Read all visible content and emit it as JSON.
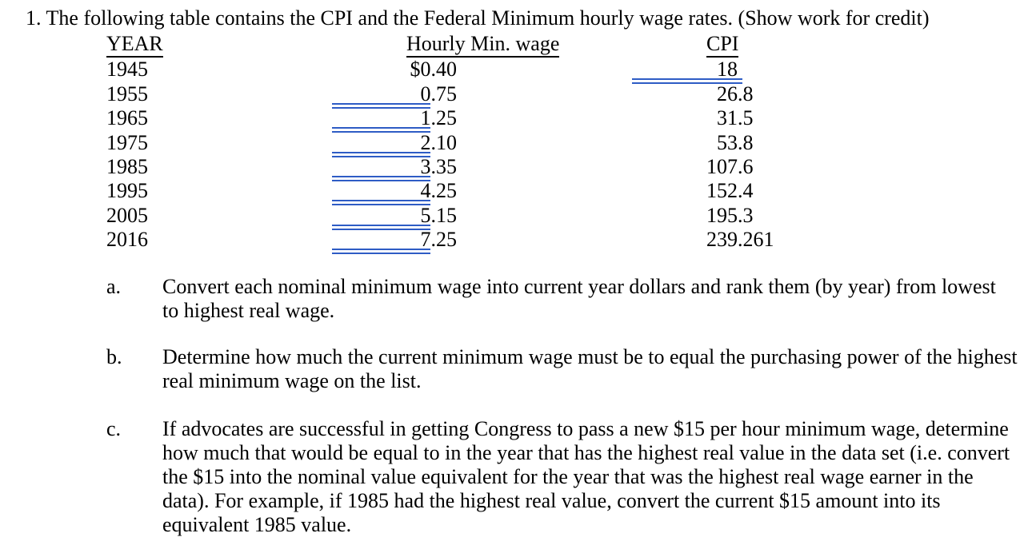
{
  "title": "1. The following table contains the CPI and the Federal Minimum hourly wage rates. (Show work for credit)",
  "table": {
    "headers": {
      "year": "YEAR",
      "wage": "Hourly Min. wage",
      "cpi": "CPI"
    },
    "rows": [
      {
        "year": "1945",
        "wage": "$0.40",
        "cpi": "18",
        "wage_blank": false,
        "cpi_blank": true
      },
      {
        "year": "1955",
        "wage": "0.75",
        "cpi": "26.8",
        "wage_blank": true,
        "cpi_blank": false
      },
      {
        "year": "1965",
        "wage": "1.25",
        "cpi": "31.5",
        "wage_blank": true,
        "cpi_blank": false
      },
      {
        "year": "1975",
        "wage": "2.10",
        "cpi": "53.8",
        "wage_blank": true,
        "cpi_blank": false
      },
      {
        "year": "1985",
        "wage": "3.35",
        "cpi": "107.6",
        "wage_blank": true,
        "cpi_blank": false
      },
      {
        "year": "1995",
        "wage": "4.25",
        "cpi": "152.4",
        "wage_blank": true,
        "cpi_blank": false
      },
      {
        "year": "2005",
        "wage": "5.15",
        "cpi": "195.3",
        "wage_blank": true,
        "cpi_blank": false
      },
      {
        "year": "2016",
        "wage": "7.25",
        "cpi": "239.261",
        "wage_blank": true,
        "cpi_blank": false
      }
    ]
  },
  "questions": [
    {
      "marker": "a.",
      "lines": [
        "Convert each nominal minimum wage into current year dollars and rank them (by year) from lowest",
        "to highest real wage."
      ]
    },
    {
      "marker": "b.",
      "lines": [
        "Determine how much the current minimum wage must be to equal the purchasing power of the highest",
        "real minimum wage on the list."
      ]
    },
    {
      "marker": "c.",
      "lines": [
        "If advocates are successful in getting Congress to pass a new $15 per hour minimum wage, determine",
        "how much that would be equal to in the year that has the highest real value in the data set (i.e. convert",
        "the $15 into the nominal value equivalent for the year that was the highest real wage earner in the",
        "data). For example, if 1985 had the highest real value, convert the current $15 amount into its",
        "equivalent 1985 value."
      ]
    }
  ],
  "colors": {
    "underline_blue": "#2e5cc5",
    "text": "#000000"
  }
}
